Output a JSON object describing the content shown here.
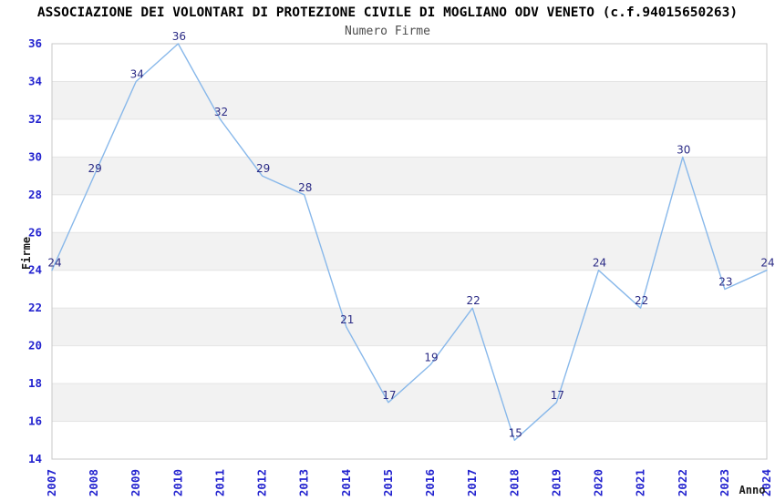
{
  "chart_data": {
    "type": "line",
    "title": "ASSOCIAZIONE DEI VOLONTARI DI PROTEZIONE CIVILE DI MOGLIANO ODV VENETO (c.f.94015650263)",
    "subtitle": "Numero Firme",
    "xlabel": "Anno",
    "ylabel": "Firme",
    "x": [
      2007,
      2008,
      2009,
      2010,
      2011,
      2012,
      2013,
      2014,
      2015,
      2016,
      2017,
      2018,
      2019,
      2020,
      2021,
      2022,
      2023,
      2024
    ],
    "values": [
      24,
      29,
      34,
      36,
      32,
      29,
      28,
      21,
      17,
      19,
      22,
      15,
      17,
      24,
      22,
      30,
      23,
      24
    ],
    "ylim": [
      14,
      36
    ],
    "ytick_step": 2,
    "grid": "horizontal striped bands, alternating",
    "legend": "none",
    "markers": "none",
    "data_labels_shown": true,
    "colors": {
      "line": "#88b8ea",
      "data_label": "#2b2b85",
      "axis_tick_label": "#2323cf",
      "band_fill": "#f2f2f2",
      "band_edge": "#e4e4e4",
      "plot_border": "#c8c8c8",
      "title": "#000000",
      "subtitle": "#4d4d4d",
      "axis_title": "#1a1a1a",
      "background": "#ffffff"
    }
  }
}
